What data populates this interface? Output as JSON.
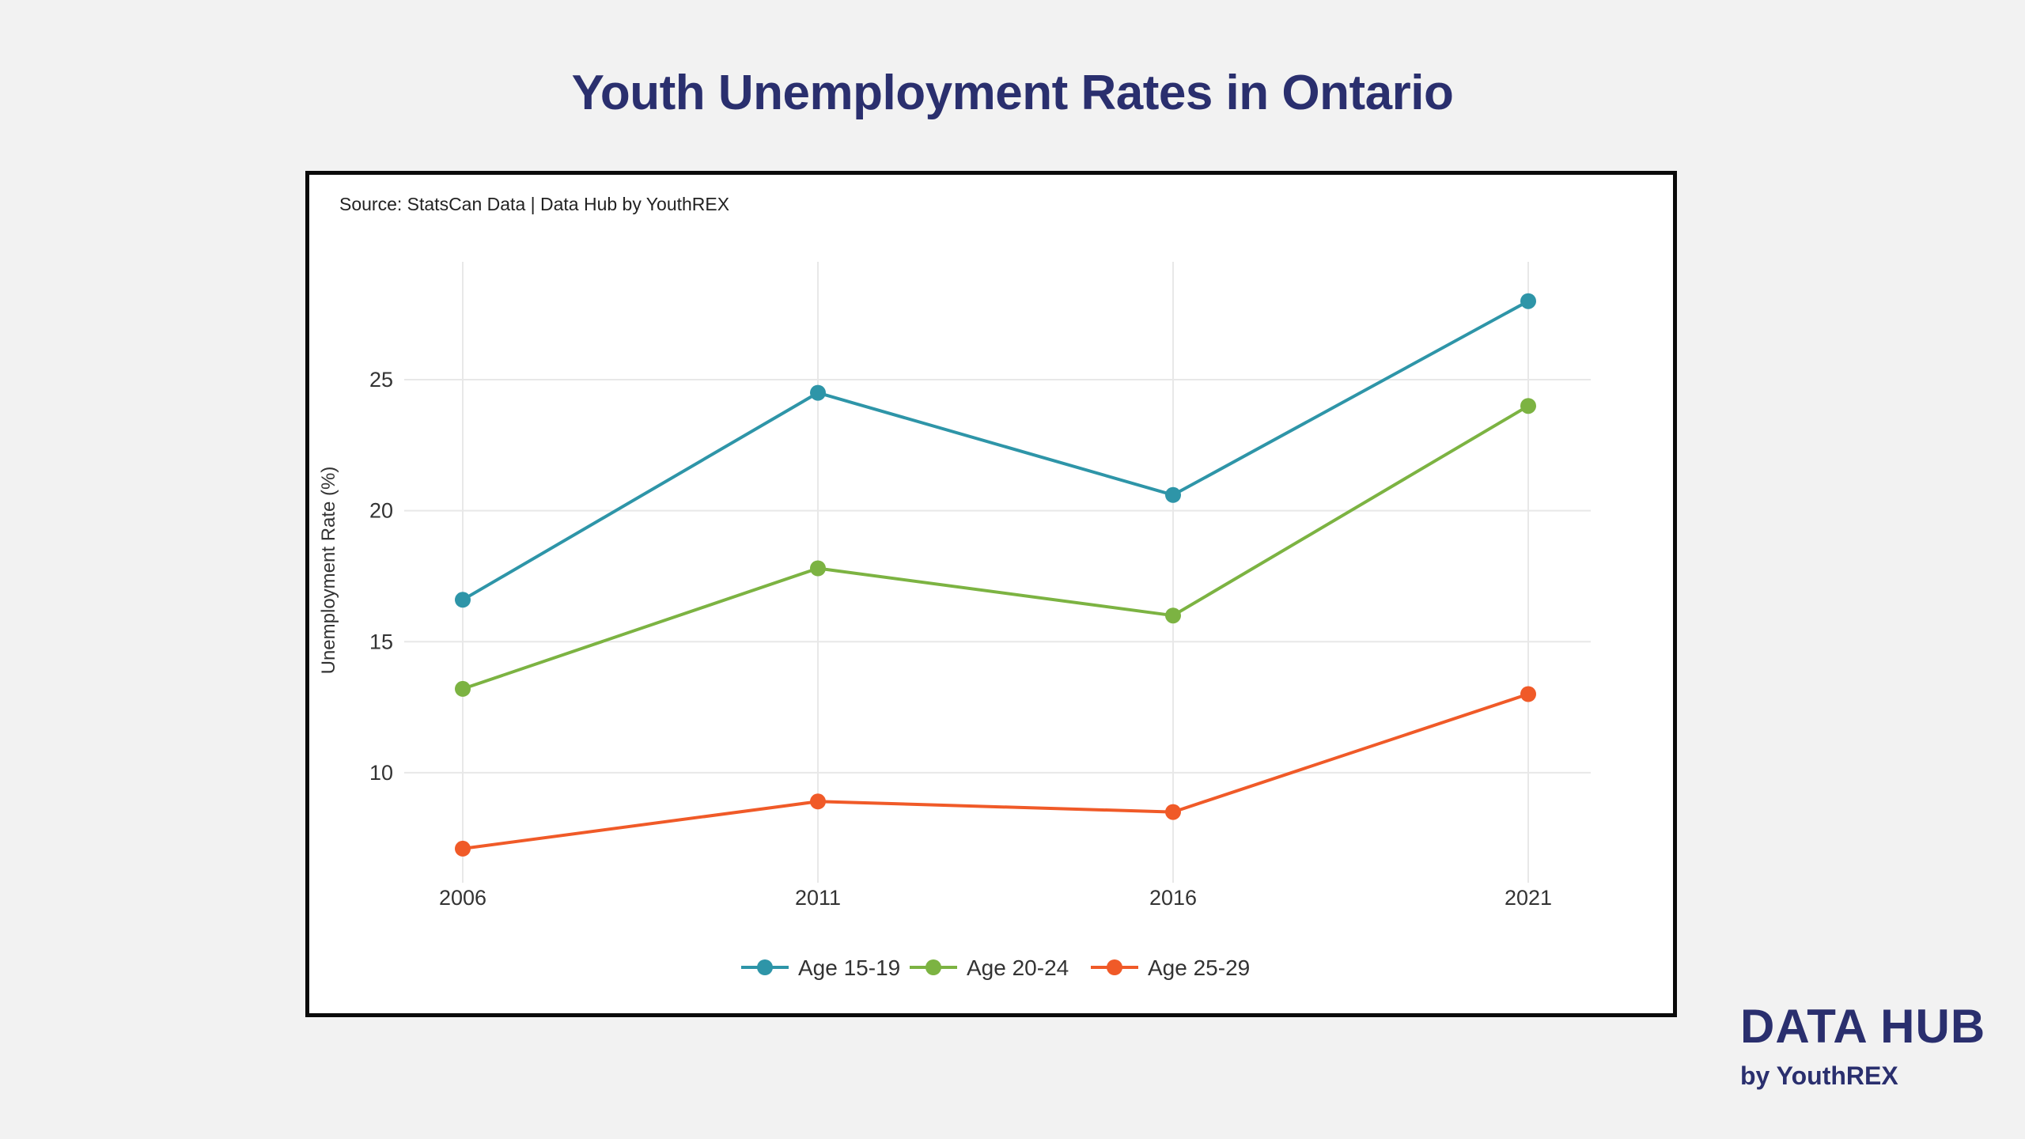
{
  "title": "Youth Unemployment Rates in Ontario",
  "source": "Source: StatsCan Data | Data Hub by YouthREX",
  "brand": {
    "title": "DATA HUB",
    "subtitle": "by YouthREX"
  },
  "chart_data": {
    "type": "line",
    "x": [
      2006,
      2011,
      2016,
      2021
    ],
    "x_tick_labels": [
      "2006",
      "2011",
      "2016",
      "2021"
    ],
    "ylabel": "Unemployment Rate (%)",
    "xlabel": "",
    "ylim": [
      5.8,
      29.5
    ],
    "y_ticks": [
      10,
      15,
      20,
      25
    ],
    "grid": true,
    "legend_position": "bottom",
    "series": [
      {
        "name": "Age 15-19",
        "color": "#2e95a8",
        "values": [
          16.6,
          24.5,
          20.6,
          28.0
        ]
      },
      {
        "name": "Age 20-24",
        "color": "#7cb342",
        "values": [
          13.2,
          17.8,
          16.0,
          24.0
        ]
      },
      {
        "name": "Age 25-29",
        "color": "#f05a28",
        "values": [
          7.1,
          8.9,
          8.5,
          13.0
        ]
      }
    ]
  }
}
